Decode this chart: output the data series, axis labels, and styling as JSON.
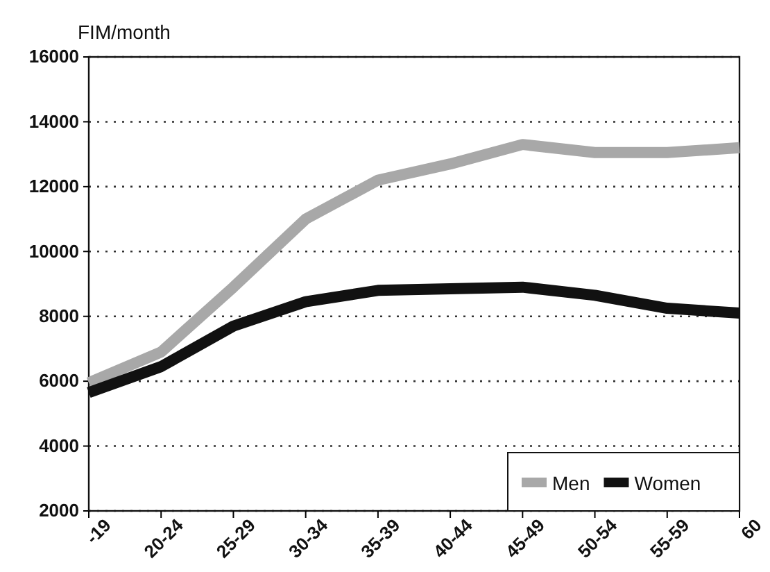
{
  "chart_data": {
    "type": "line",
    "ylabel": "FIM/month",
    "categories": [
      "-19",
      "20-24",
      "25-29",
      "30-34",
      "35-39",
      "40-44",
      "45-49",
      "50-54",
      "55-59",
      "60"
    ],
    "series": [
      {
        "name": "Men",
        "color": "#a8a8a8",
        "values": [
          5950,
          6900,
          8900,
          11000,
          12200,
          12700,
          13300,
          13050,
          13050,
          13200
        ]
      },
      {
        "name": "Women",
        "color": "#111111",
        "values": [
          5650,
          6450,
          7700,
          8450,
          8800,
          8850,
          8900,
          8650,
          8250,
          8100
        ]
      }
    ],
    "ylim": [
      2000,
      16000
    ],
    "yticks": [
      2000,
      4000,
      6000,
      8000,
      10000,
      12000,
      14000,
      16000
    ],
    "grid": "y",
    "legend": "bottom right",
    "marker": "none",
    "line_style": "solid"
  }
}
